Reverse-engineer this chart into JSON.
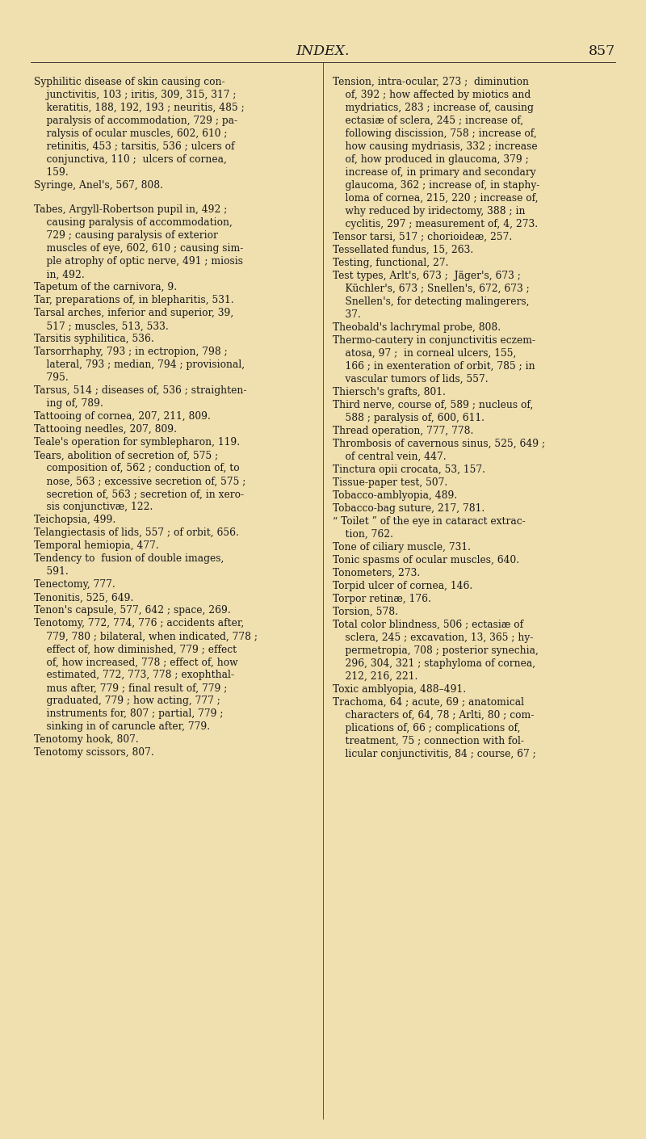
{
  "bg_color": "#f0e0b0",
  "text_color": "#1a1a1a",
  "header_text": "INDEX.",
  "page_number": "857",
  "header_fontsize": 12.5,
  "body_fontsize": 8.8,
  "left_column": [
    "Syphilitic disease of skin causing con-",
    "    junctivitis, 103 ; iritis, 309, 315, 317 ;",
    "    keratitis, 188, 192, 193 ; neuritis, 485 ;",
    "    paralysis of accommodation, 729 ; pa-",
    "    ralysis of ocular muscles, 602, 610 ;",
    "    retinitis, 453 ; tarsitis, 536 ; ulcers of",
    "    conjunctiva, 110 ;  ulcers of cornea,",
    "    159.",
    "Syringe, Anel's, 567, 808.",
    "",
    "Tabes, Argyll-Robertson pupil in, 492 ;",
    "    causing paralysis of accommodation,",
    "    729 ; causing paralysis of exterior",
    "    muscles of eye, 602, 610 ; causing sim-",
    "    ple atrophy of optic nerve, 491 ; miosis",
    "    in, 492.",
    "Tapetum of the carnivora, 9.",
    "Tar, preparations of, in blepharitis, 531.",
    "Tarsal arches, inferior and superior, 39,",
    "    517 ; muscles, 513, 533.",
    "Tarsitis syphilitica, 536.",
    "Tarsorrhaphy, 793 ; in ectropion, 798 ;",
    "    lateral, 793 ; median, 794 ; provisional,",
    "    795.",
    "Tarsus, 514 ; diseases of, 536 ; straighten-",
    "    ing of, 789.",
    "Tattooing of cornea, 207, 211, 809.",
    "Tattooing needles, 207, 809.",
    "Teale's operation for symblepharon, 119.",
    "Tears, abolition of secretion of, 575 ;",
    "    composition of, 562 ; conduction of, to",
    "    nose, 563 ; excessive secretion of, 575 ;",
    "    secretion of, 563 ; secretion of, in xero-",
    "    sis conjunctivæ, 122.",
    "Teichopsia, 499.",
    "Telangiectasis of lids, 557 ; of orbit, 656.",
    "Temporal hemiopia, 477.",
    "Tendency to  fusion of double images,",
    "    591.",
    "Tenectomy, 777.",
    "Tenonitis, 525, 649.",
    "Tenon's capsule, 577, 642 ; space, 269.",
    "Tenotomy, 772, 774, 776 ; accidents after,",
    "    779, 780 ; bilateral, when indicated, 778 ;",
    "    effect of, how diminished, 779 ; effect",
    "    of, how increased, 778 ; effect of, how",
    "    estimated, 772, 773, 778 ; exophthal-",
    "    mus after, 779 ; final result of, 779 ;",
    "    graduated, 779 ; how acting, 777 ;",
    "    instruments for, 807 ; partial, 779 ;",
    "    sinking in of caruncle after, 779.",
    "Tenotomy hook, 807.",
    "Tenotomy scissors, 807."
  ],
  "right_column": [
    "Tension, intra-ocular, 273 ;  diminution",
    "    of, 392 ; how affected by miotics and",
    "    mydriatics, 283 ; increase of, causing",
    "    ectasiæ of sclera, 245 ; increase of,",
    "    following discission, 758 ; increase of,",
    "    how causing mydriasis, 332 ; increase",
    "    of, how produced in glaucoma, 379 ;",
    "    increase of, in primary and secondary",
    "    glaucoma, 362 ; increase of, in staphy-",
    "    loma of cornea, 215, 220 ; increase of,",
    "    why reduced by iridectomy, 388 ; in",
    "    cyclitis, 297 ; measurement of, 4, 273.",
    "Tensor tarsi, 517 ; chorioideæ, 257.",
    "Tessellated fundus, 15, 263.",
    "Testing, functional, 27.",
    "Test types, Arlt's, 673 ;  Jäger's, 673 ;",
    "    Küchler's, 673 ; Snellen's, 672, 673 ;",
    "    Snellen's, for detecting malingerers,",
    "    37.",
    "Theobald's lachrymal probe, 808.",
    "Thermo-cautery in conjunctivitis eczem-",
    "    atosa, 97 ;  in corneal ulcers, 155,",
    "    166 ; in exenteration of orbit, 785 ; in",
    "    vascular tumors of lids, 557.",
    "Thiersch's grafts, 801.",
    "Third nerve, course of, 589 ; nucleus of,",
    "    588 ; paralysis of, 600, 611.",
    "Thread operation, 777, 778.",
    "Thrombosis of cavernous sinus, 525, 649 ;",
    "    of central vein, 447.",
    "Tinctura opii crocata, 53, 157.",
    "Tissue-paper test, 507.",
    "Tobacco-amblyopia, 489.",
    "Tobacco-bag suture, 217, 781.",
    "“ Toilet ” of the eye in cataract extrac-",
    "    tion, 762.",
    "Tone of ciliary muscle, 731.",
    "Tonic spasms of ocular muscles, 640.",
    "Tonometers, 273.",
    "Torpid ulcer of cornea, 146.",
    "Torpor retinæ, 176.",
    "Torsion, 578.",
    "Total color blindness, 506 ; ectasiæ of",
    "    sclera, 245 ; excavation, 13, 365 ; hy-",
    "    permetropia, 708 ; posterior synechia,",
    "    296, 304, 321 ; staphyloma of cornea,",
    "    212, 216, 221.",
    "Toxic amblyopia, 488–491.",
    "Trachoma, 64 ; acute, 69 ; anatomical",
    "    characters of, 64, 78 ; Arlti, 80 ; com-",
    "    plications of, 66 ; complications of,",
    "    treatment, 75 ; connection with fol-",
    "    licular conjunctivitis, 84 ; course, 67 ;"
  ]
}
